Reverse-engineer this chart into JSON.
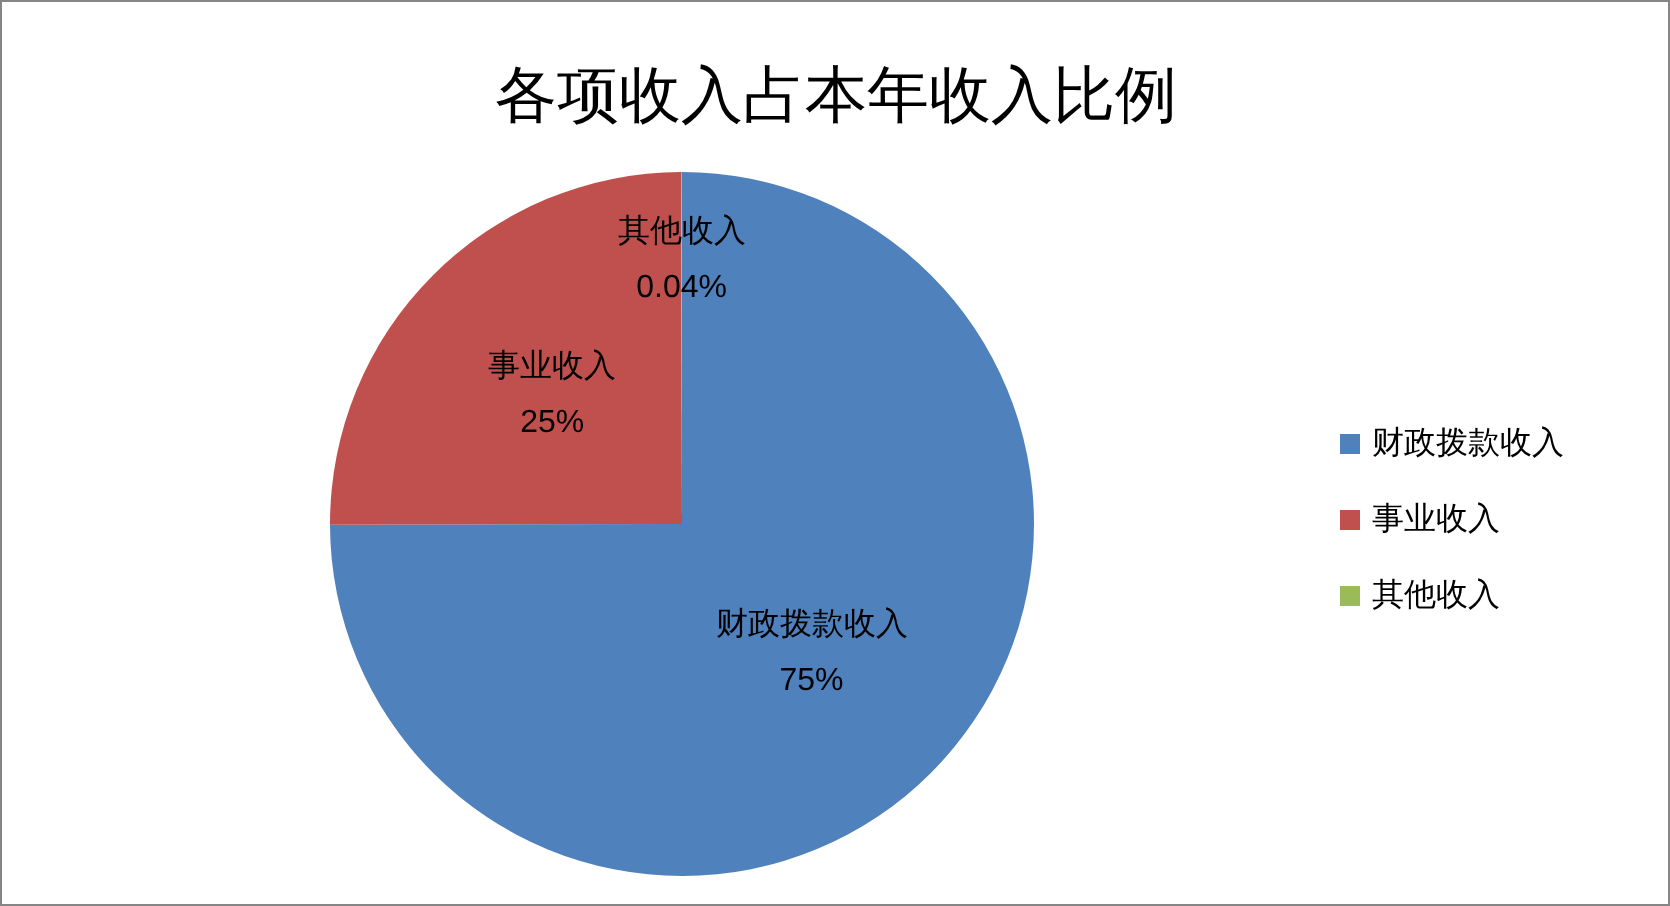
{
  "chart_data": {
    "type": "pie",
    "title": "各项收入占本年收入比例",
    "categories": [
      "财政拨款收入",
      "事业收入",
      "其他收入"
    ],
    "values": [
      75,
      25,
      0.04
    ],
    "colors": [
      "#4f81bd",
      "#c0504d",
      "#9bbb59"
    ],
    "value_labels": [
      "75%",
      "25%",
      "0.04%"
    ],
    "legend": "right"
  }
}
